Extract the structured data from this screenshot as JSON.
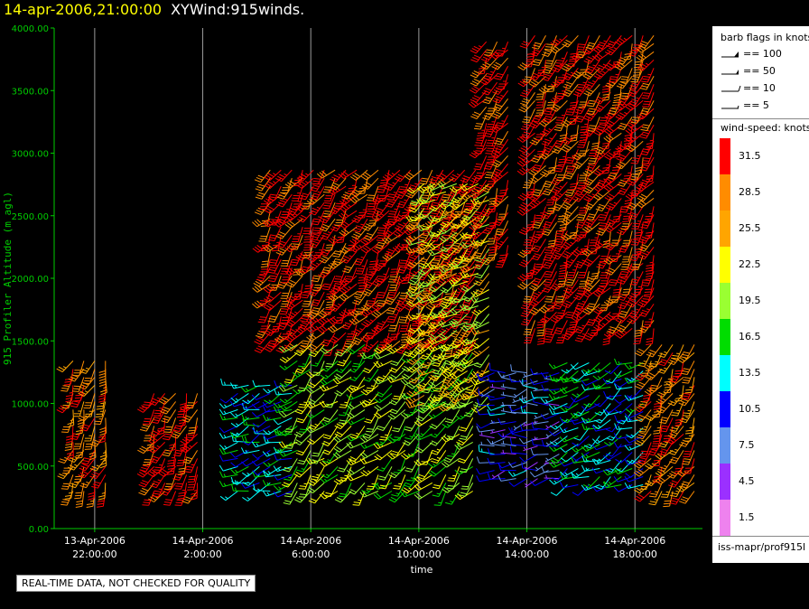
{
  "header": {
    "date": "14-apr-2006,21:00:00",
    "plot": "XYWind:915winds."
  },
  "quality_note": "REAL-TIME DATA, NOT CHECKED FOR QUALITY",
  "legend": {
    "barb_title": "barb flags in knots",
    "flags": [
      {
        "label": "== 100",
        "knots": 100
      },
      {
        "label": "== 50",
        "knots": 50
      },
      {
        "label": "== 10",
        "knots": 10
      },
      {
        "label": "== 5",
        "knots": 5
      }
    ],
    "speed_title": "wind-speed: knots",
    "colorbar": [
      {
        "label": "31.5",
        "color": "#ff0000"
      },
      {
        "label": "28.5",
        "color": "#ff8c00"
      },
      {
        "label": "25.5",
        "color": "#ffa500"
      },
      {
        "label": "22.5",
        "color": "#ffff00"
      },
      {
        "label": "19.5",
        "color": "#9aff32"
      },
      {
        "label": "16.5",
        "color": "#00dd00"
      },
      {
        "label": "13.5",
        "color": "#00ffff"
      },
      {
        "label": "10.5",
        "color": "#0000ff"
      },
      {
        "label": "7.5",
        "color": "#6495ed"
      },
      {
        "label": "4.5",
        "color": "#9b30ff"
      },
      {
        "label": "1.5",
        "color": "#ee82ee"
      }
    ],
    "source": "iss-mapr/prof915l"
  },
  "chart_data": {
    "type": "scatter",
    "ylabel": "915 Profiler Altitude (m agl)",
    "xlabel": "time",
    "ylim": [
      0,
      4000
    ],
    "yticks": [
      "0.00",
      "500.00",
      "1000.00",
      "1500.00",
      "2000.00",
      "2500.00",
      "3000.00",
      "3500.00",
      "4000.00"
    ],
    "ytick_values": [
      0,
      500,
      1000,
      1500,
      2000,
      2500,
      3000,
      3500,
      4000
    ],
    "x_range_hours": [
      -1.5,
      22.5
    ],
    "xticks": [
      {
        "date": "13-Apr-2006",
        "time": "22:00:00",
        "hour": 0
      },
      {
        "date": "14-Apr-2006",
        "time": "2:00:00",
        "hour": 4
      },
      {
        "date": "14-Apr-2006",
        "time": "6:00:00",
        "hour": 8
      },
      {
        "date": "14-Apr-2006",
        "time": "10:00:00",
        "hour": 12
      },
      {
        "date": "14-Apr-2006",
        "time": "14:00:00",
        "hour": 16
      },
      {
        "date": "14-Apr-2006",
        "time": "18:00:00",
        "hour": 20
      }
    ],
    "grid": true,
    "colors": {
      "axis": "#00cc00",
      "grid": "#9a9a9a",
      "tick_labels": "#ffffff",
      "ylabel": "#00cc00"
    },
    "series": [
      {
        "hours": [
          -0.8,
          -0.4,
          0,
          0.4
        ],
        "alt_min": 300,
        "alt_max": 1350,
        "speed": 29,
        "dir": 200
      },
      {
        "hours": [
          2.2,
          2.6,
          3.0,
          3.4,
          3.8
        ],
        "alt_min": 300,
        "alt_max": 1100,
        "speed": 31.5,
        "dir": 205
      },
      {
        "hours": [
          5.3,
          5.7,
          6.1,
          6.5,
          6.9,
          7.3
        ],
        "alt_min": 300,
        "alt_max": 1200,
        "speed": 14,
        "dir": 250
      },
      {
        "hours": [
          6.5,
          6.9,
          7.3,
          7.7,
          8.1,
          8.5,
          8.9,
          9.3,
          9.7,
          10.1,
          10.5,
          10.9,
          11.3,
          11.7,
          12.1,
          12.5,
          12.9,
          13.3,
          13.7,
          14.1
        ],
        "alt_min": 1500,
        "alt_max": 2900,
        "speed": 31.5,
        "dir": 215
      },
      {
        "hours": [
          7.5,
          8.0,
          8.5,
          9.0,
          9.5,
          10.0,
          10.5,
          11.0,
          11.5,
          12.0,
          12.5,
          13.0,
          13.5,
          14.0
        ],
        "alt_min": 300,
        "alt_max": 1500,
        "speed": 20,
        "dir": 225
      },
      {
        "hours": [
          12.2,
          12.6,
          13.0,
          13.4,
          13.8,
          14.2,
          14.6
        ],
        "alt_min": 1000,
        "alt_max": 2800,
        "speed": 22,
        "dir": 230
      },
      {
        "hours": [
          14.8,
          15.2,
          15.6,
          16.0,
          16.4,
          16.8,
          17.2
        ],
        "alt_min": 400,
        "alt_max": 1300,
        "speed": 9,
        "dir": 260
      },
      {
        "hours": [
          14.5,
          14.9,
          15.3
        ],
        "alt_min": 2200,
        "alt_max": 3950,
        "speed": 31.5,
        "dir": 210
      },
      {
        "hours": [
          16.3,
          16.7,
          17.1,
          17.5,
          17.9,
          18.3,
          18.7,
          19.1,
          19.5,
          19.9,
          20.3,
          20.7
        ],
        "alt_min": 1600,
        "alt_max": 4000,
        "speed": 31.5,
        "dir": 210
      },
      {
        "hours": [
          17.5,
          17.9,
          18.3,
          18.7,
          19.1,
          19.5,
          19.9,
          20.3
        ],
        "alt_min": 350,
        "alt_max": 1350,
        "speed": 14,
        "dir": 240
      },
      {
        "hours": [
          20.6,
          21.0,
          21.4,
          21.8,
          22.2
        ],
        "alt_min": 300,
        "alt_max": 1500,
        "speed": 28,
        "dir": 210
      }
    ]
  }
}
